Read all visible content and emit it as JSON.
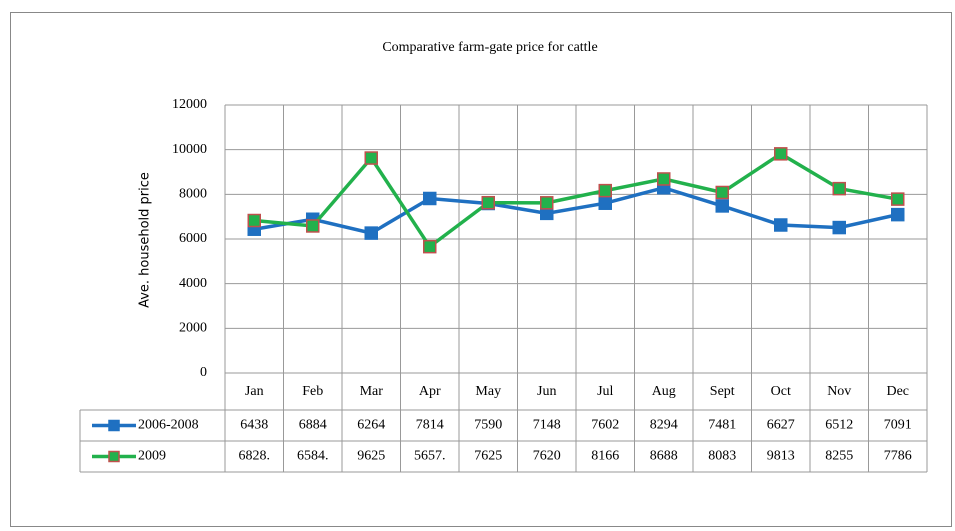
{
  "chart_data": {
    "type": "line",
    "title": "Comparative farm-gate price for cattle",
    "y_label": "Ave. household price",
    "categories": [
      "Jan",
      "Feb",
      "Mar",
      "Apr",
      "May",
      "Jun",
      "Jul",
      "Aug",
      "Sept",
      "Oct",
      "Nov",
      "Dec"
    ],
    "series": [
      {
        "name": "2006-2008",
        "color": "#1f70c1",
        "marker_edge_color": "#1f70c1",
        "values": [
          6438,
          6884,
          6264,
          7814,
          7590,
          7148,
          7602,
          8294,
          7481,
          6627,
          6512,
          7091
        ]
      },
      {
        "name": "2009",
        "color": "#22b14c",
        "marker_edge_color": "#c0504d",
        "values": [
          6828,
          6584,
          9625,
          5657,
          7625,
          7620,
          8166,
          8688,
          8083,
          9813,
          8255,
          7786
        ],
        "value_labels": [
          "6828.",
          "6584.",
          "9625",
          "5657.",
          "7625",
          "7620",
          "8166",
          "8688",
          "8083",
          "9813",
          "8255",
          "7786"
        ]
      }
    ],
    "ylim": [
      0,
      12000
    ],
    "yticks": [
      0,
      2000,
      4000,
      6000,
      8000,
      10000,
      12000
    ],
    "grid": true
  }
}
